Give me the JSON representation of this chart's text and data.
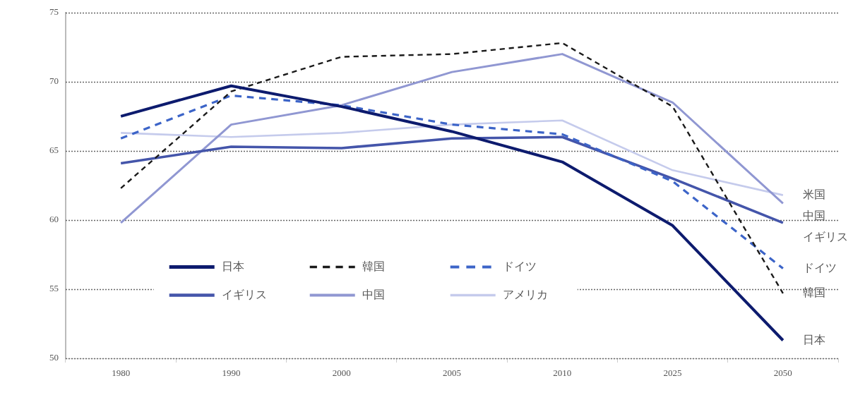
{
  "chart_data": {
    "type": "line",
    "categories": [
      "1980",
      "1990",
      "2000",
      "2005",
      "2010",
      "2025",
      "2050"
    ],
    "series": [
      {
        "name": "日本",
        "color": "#0d1b6e",
        "values": [
          67.5,
          69.7,
          68.2,
          66.4,
          64.2,
          59.6,
          51.3
        ]
      },
      {
        "name": "韓国",
        "color": "#1a1a1a",
        "line_style": "dashed",
        "values": [
          62.3,
          69.3,
          71.8,
          72.0,
          72.8,
          68.2,
          54.7
        ]
      },
      {
        "name": "ドイツ",
        "color": "#3c64c8",
        "line_style": "dashed",
        "values": [
          65.9,
          69.0,
          68.3,
          66.9,
          66.2,
          62.8,
          56.5
        ]
      },
      {
        "name": "イギリス",
        "color": "#4455aa",
        "values": [
          64.1,
          65.3,
          65.2,
          65.9,
          66.0,
          63.0,
          59.8
        ]
      },
      {
        "name": "中国",
        "color": "#9097d2",
        "values": [
          59.8,
          66.9,
          68.3,
          70.7,
          72.0,
          68.5,
          61.2
        ]
      },
      {
        "name": "アメリカ",
        "color": "#c5cbec",
        "values": [
          66.3,
          66.0,
          66.3,
          66.9,
          67.2,
          63.6,
          61.8
        ]
      }
    ],
    "ylim": [
      50,
      75
    ],
    "yticks": [
      50,
      55,
      60,
      65,
      70,
      75
    ],
    "grid": "y",
    "legend": "bottom left",
    "marker": "none",
    "line_style": "solid",
    "annotations": [
      {
        "text": "米国",
        "x": "2050",
        "y": 61.8
      },
      {
        "text": "中国",
        "x": "2050",
        "y": 61.2
      },
      {
        "text": "イギリス",
        "x": "2050",
        "y": 59.8
      },
      {
        "text": "ドイツ",
        "x": "2050",
        "y": 56.5
      },
      {
        "text": "韓国",
        "x": "2050",
        "y": 54.7
      },
      {
        "text": "日本",
        "x": "2050",
        "y": 51.3
      }
    ]
  }
}
